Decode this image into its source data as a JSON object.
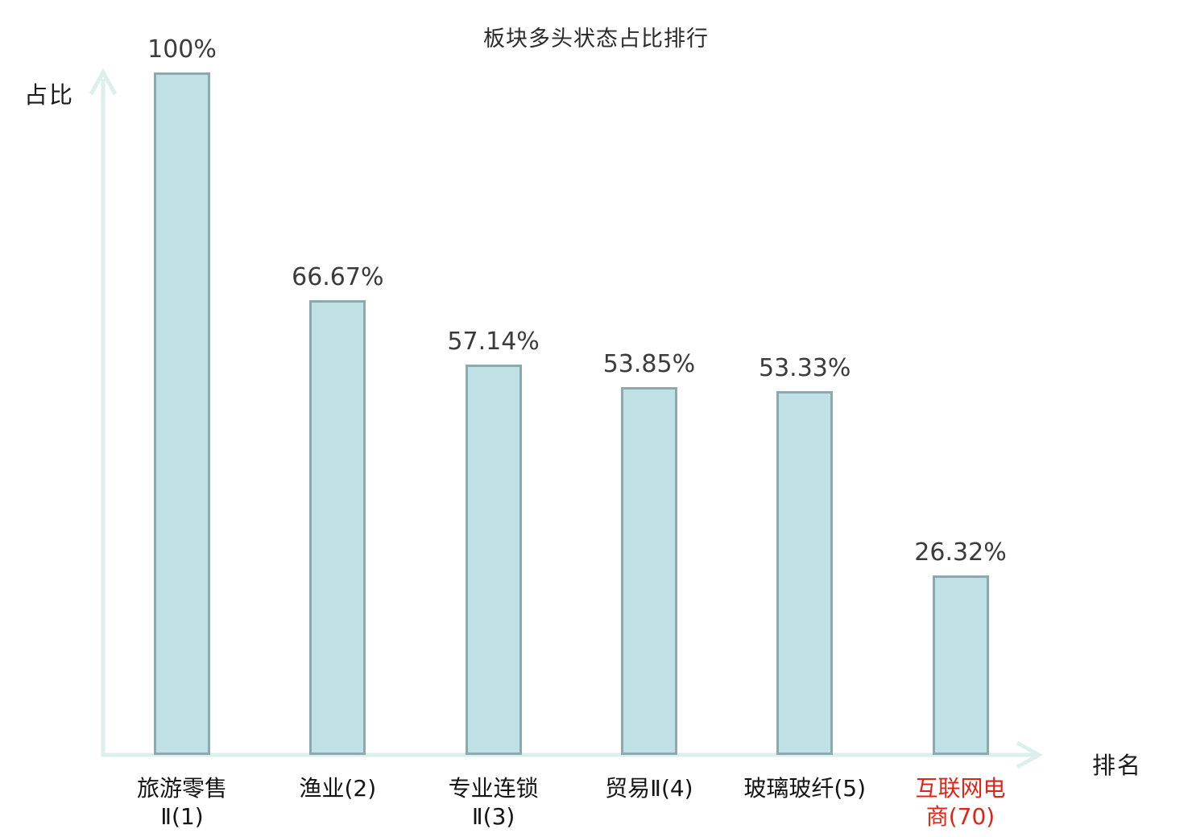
{
  "title": "板块多头状态占比排行",
  "axes": {
    "y_label": "占比",
    "x_label": "排名"
  },
  "colors": {
    "bar_fill": "#bfe0e4",
    "bar_border": "#8ca9ad",
    "axis": "#ddefec",
    "value_text": "#3b3b3b",
    "category_text": "#141414",
    "highlight_text": "#e02418",
    "background": "#ffffff"
  },
  "chart_data": {
    "type": "bar",
    "title": "板块多头状态占比排行",
    "xlabel": "排名",
    "ylabel": "占比",
    "ylim": [
      0,
      100
    ],
    "grid": false,
    "legend": false,
    "categories": [
      "旅游零售\nⅡ(1)",
      "渔业(2)",
      "专业连锁\nⅡ(3)",
      "贸易Ⅱ(4)",
      "玻璃玻纤(5)",
      "互联网电\n商(70)"
    ],
    "values": [
      100,
      66.67,
      57.14,
      53.85,
      53.33,
      26.32
    ],
    "value_labels": [
      "100%",
      "66.67%",
      "57.14%",
      "53.85%",
      "53.33%",
      "26.32%"
    ],
    "highlighted_category_index": 5
  }
}
